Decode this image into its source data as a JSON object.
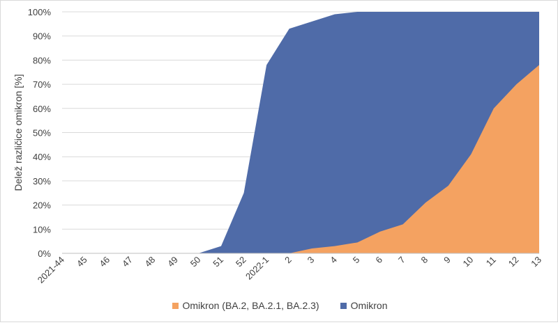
{
  "chart_data": {
    "type": "area",
    "ylabel": "Delež različice omikron [%]",
    "xlabel": "",
    "ylim": [
      0,
      100
    ],
    "yticks": [
      0,
      10,
      20,
      30,
      40,
      50,
      60,
      70,
      80,
      90,
      100
    ],
    "ytick_labels": [
      "0%",
      "10%",
      "20%",
      "30%",
      "40%",
      "50%",
      "60%",
      "70%",
      "80%",
      "90%",
      "100%"
    ],
    "categories": [
      "2021-44",
      "45",
      "46",
      "47",
      "48",
      "49",
      "50",
      "51",
      "52",
      "2022-1",
      "2",
      "3",
      "4",
      "5",
      "6",
      "7",
      "8",
      "9",
      "10",
      "11",
      "12",
      "13"
    ],
    "grid": true,
    "legend_position": "bottom",
    "series": [
      {
        "name": "Omikron (BA.2, BA.2.1, BA.2.3)",
        "color": "#F4A261",
        "values": [
          0,
          0,
          0,
          0,
          0,
          0,
          0,
          0,
          0,
          0,
          0,
          2,
          3,
          4.5,
          9,
          12,
          21,
          28,
          41,
          60,
          70,
          78
        ]
      },
      {
        "name": "Omikron",
        "color": "#4F6BA8",
        "values": [
          0,
          0,
          0,
          0,
          0,
          0,
          0,
          3,
          25,
          78,
          93,
          96,
          99,
          100,
          100,
          100,
          100,
          100,
          100,
          100,
          100,
          100
        ]
      }
    ]
  }
}
